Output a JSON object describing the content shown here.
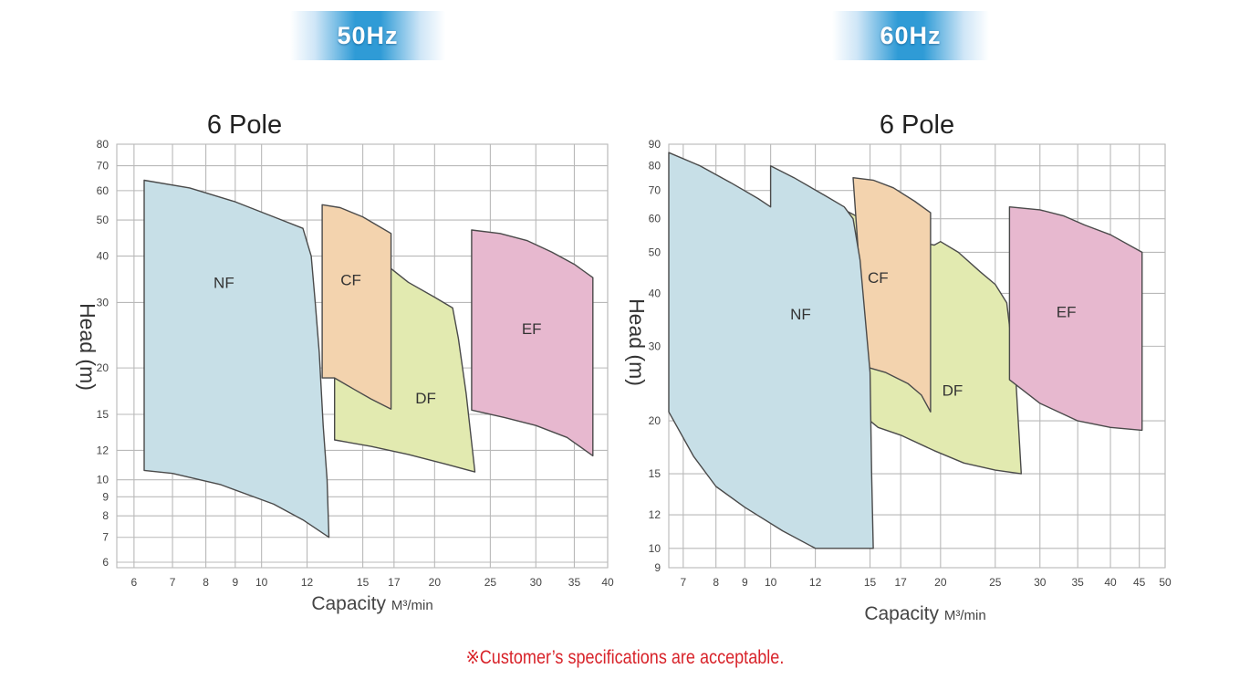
{
  "badges": {
    "left": "50Hz",
    "right": "60Hz"
  },
  "footnote": "※Customer’s specifications are acceptable.",
  "colors": {
    "NF": "#c7dfe7",
    "CF": "#f3d3ae",
    "DF": "#e2eab0",
    "EF": "#e7b8cf",
    "grid": "#b9b9b9",
    "outline": "#4a4a4a",
    "footnote": "#d8232a"
  },
  "chart_data": [
    {
      "type": "area",
      "title": "6 Pole",
      "xlabel": "Capacity",
      "xunit": "M³/min",
      "ylabel": "Head (m)",
      "x_scale": "log",
      "y_scale": "log",
      "xlim": [
        5.6,
        40
      ],
      "ylim": [
        5.8,
        80
      ],
      "x_ticks": [
        6,
        7,
        8,
        9,
        10,
        12,
        15,
        17,
        20,
        25,
        30,
        35,
        40
      ],
      "y_ticks": [
        6,
        7,
        8,
        9,
        10,
        12,
        15,
        20,
        30,
        40,
        50,
        60,
        70,
        80
      ],
      "series": [
        {
          "name": "NF",
          "label_at": [
            8.6,
            34
          ],
          "points": [
            [
              6.25,
              64
            ],
            [
              7.5,
              61
            ],
            [
              9,
              56
            ],
            [
              10.5,
              51
            ],
            [
              11.8,
              47.5
            ],
            [
              12.2,
              40
            ],
            [
              12.4,
              30
            ],
            [
              12.6,
              22
            ],
            [
              12.8,
              14
            ],
            [
              13,
              10
            ],
            [
              13.1,
              7
            ],
            [
              11.8,
              7.8
            ],
            [
              10.5,
              8.6
            ],
            [
              8.5,
              9.7
            ],
            [
              7,
              10.4
            ],
            [
              6.25,
              10.6
            ]
          ]
        },
        {
          "name": "DF",
          "label_at": [
            19.3,
            16.6
          ],
          "points": [
            [
              13.4,
              18.8
            ],
            [
              14,
              30
            ],
            [
              16.8,
              37
            ],
            [
              18,
              34
            ],
            [
              20,
              31
            ],
            [
              21.5,
              29
            ],
            [
              22,
              24
            ],
            [
              22.7,
              17
            ],
            [
              23.5,
              10.5
            ],
            [
              21,
              11
            ],
            [
              18,
              11.7
            ],
            [
              15.5,
              12.3
            ],
            [
              13.4,
              12.8
            ]
          ]
        },
        {
          "name": "CF",
          "label_at": [
            14.3,
            34.5
          ],
          "points": [
            [
              12.75,
              55
            ],
            [
              13.7,
              54
            ],
            [
              15,
              51
            ],
            [
              16.8,
              46
            ],
            [
              16.8,
              15.5
            ],
            [
              15.5,
              16.5
            ],
            [
              14.5,
              17.5
            ],
            [
              13.4,
              18.8
            ],
            [
              12.75,
              18.8
            ]
          ]
        },
        {
          "name": "EF",
          "label_at": [
            29.5,
            25.5
          ],
          "points": [
            [
              23.2,
              47
            ],
            [
              26,
              46
            ],
            [
              29,
              44
            ],
            [
              32,
              41
            ],
            [
              35,
              38
            ],
            [
              37.7,
              35
            ],
            [
              37.7,
              11.6
            ],
            [
              34,
              13
            ],
            [
              30,
              14
            ],
            [
              26.5,
              14.7
            ],
            [
              23.2,
              15.4
            ]
          ]
        }
      ]
    },
    {
      "type": "area",
      "title": "6 Pole",
      "xlabel": "Capacity",
      "xunit": "M³/min",
      "ylabel": "Head (m)",
      "x_scale": "log",
      "y_scale": "log",
      "xlim": [
        6.6,
        50
      ],
      "ylim": [
        9,
        90
      ],
      "x_ticks": [
        7,
        8,
        9,
        10,
        12,
        15,
        17,
        20,
        25,
        30,
        35,
        40,
        45,
        50
      ],
      "y_ticks": [
        9,
        10,
        12,
        15,
        20,
        30,
        40,
        50,
        60,
        70,
        80,
        90
      ],
      "series": [
        {
          "name": "DF",
          "label_at": [
            21,
            23.6
          ],
          "points": [
            [
              13.2,
              64
            ],
            [
              14.5,
              60
            ],
            [
              16,
              57
            ],
            [
              17,
              55
            ],
            [
              18,
              53
            ],
            [
              19.5,
              52
            ],
            [
              20,
              53
            ],
            [
              21.5,
              50
            ],
            [
              23.5,
              45
            ],
            [
              25,
              42
            ],
            [
              26.2,
              38
            ],
            [
              27.2,
              25
            ],
            [
              27.8,
              15
            ],
            [
              25,
              15.3
            ],
            [
              22,
              15.9
            ],
            [
              19.5,
              17
            ],
            [
              17,
              18.5
            ],
            [
              15.5,
              19.3
            ],
            [
              14.8,
              20.3
            ],
            [
              14.5,
              28
            ]
          ]
        },
        {
          "name": "CF",
          "label_at": [
            15.5,
            43.6
          ],
          "points": [
            [
              14,
              75
            ],
            [
              15.2,
              74
            ],
            [
              16.5,
              71
            ],
            [
              18,
              66
            ],
            [
              19.2,
              62
            ],
            [
              19.2,
              21
            ],
            [
              18.5,
              23
            ],
            [
              17.5,
              24.5
            ],
            [
              16,
              26
            ],
            [
              14.5,
              27
            ],
            [
              14.3,
              50
            ]
          ]
        },
        {
          "name": "NF",
          "label_at": [
            11.3,
            35.8
          ],
          "points": [
            [
              6.6,
              86
            ],
            [
              7.5,
              80
            ],
            [
              8.5,
              73
            ],
            [
              9.5,
              67
            ],
            [
              10,
              64
            ],
            [
              10,
              80
            ],
            [
              11,
              75
            ],
            [
              12.5,
              68
            ],
            [
              13.5,
              64
            ],
            [
              14,
              60
            ],
            [
              14.4,
              48
            ],
            [
              15,
              26
            ],
            [
              15.1,
              15
            ],
            [
              15.2,
              10
            ],
            [
              12,
              10
            ],
            [
              10.5,
              11
            ],
            [
              9,
              12.5
            ],
            [
              8,
              14
            ],
            [
              7.3,
              16.5
            ],
            [
              6.6,
              21
            ]
          ]
        },
        {
          "name": "EF",
          "label_at": [
            33.4,
            36.2
          ],
          "points": [
            [
              26.5,
              64
            ],
            [
              30,
              63
            ],
            [
              33,
              61
            ],
            [
              36,
              58
            ],
            [
              40,
              55
            ],
            [
              45.5,
              50
            ],
            [
              45.5,
              19
            ],
            [
              40,
              19.3
            ],
            [
              35,
              20
            ],
            [
              30,
              22
            ],
            [
              26.5,
              25
            ]
          ]
        }
      ]
    }
  ]
}
